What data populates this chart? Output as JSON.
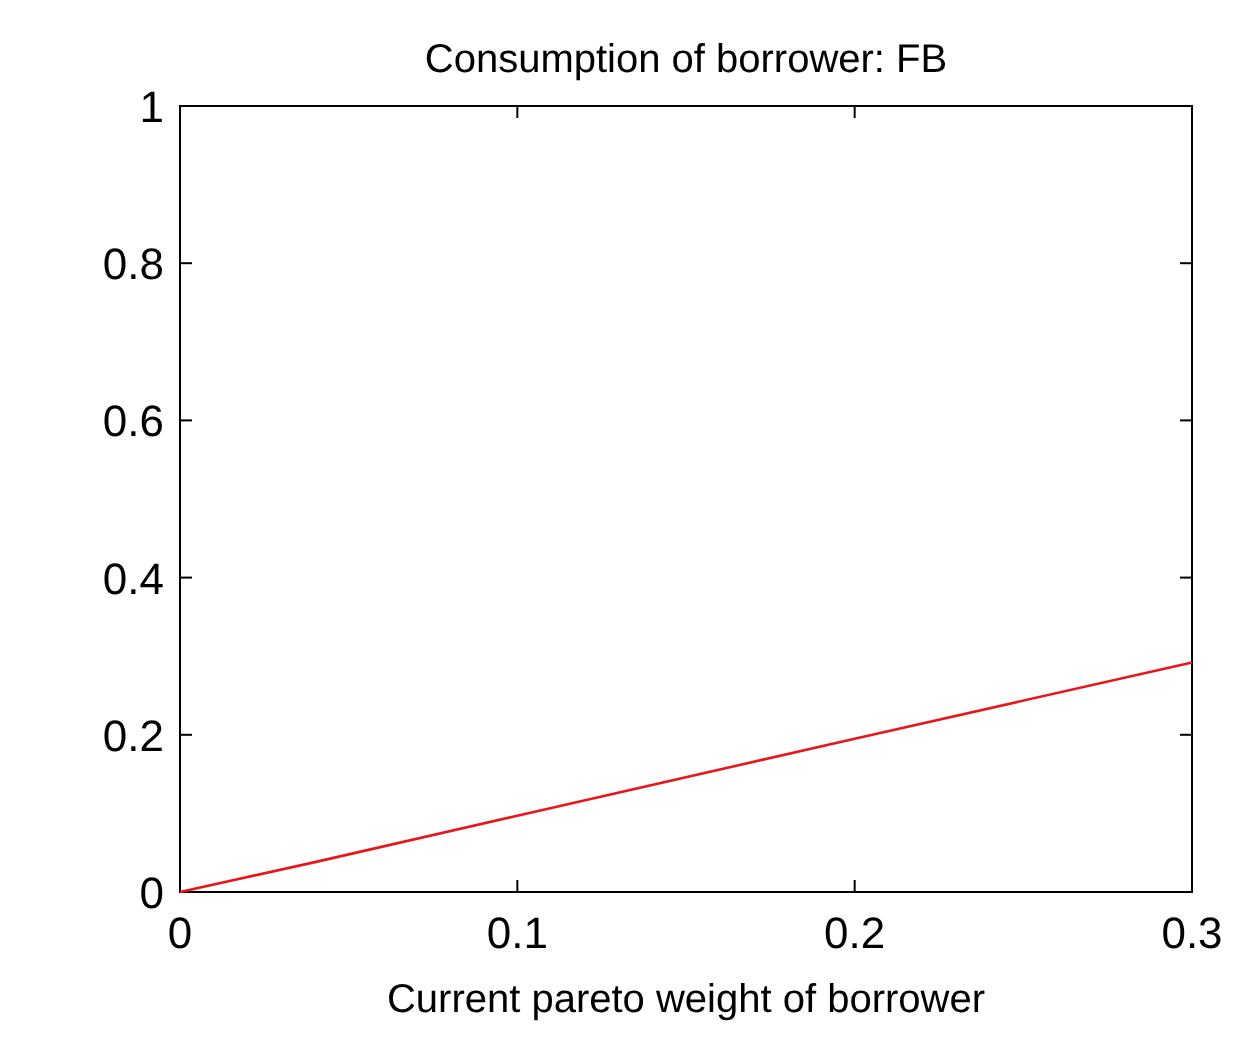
{
  "chart_data": {
    "type": "line",
    "title": "Consumption of borrower: FB",
    "xlabel": "Current pareto weight of borrower",
    "x": [
      0,
      0.04,
      0.1,
      0.2,
      0.3
    ],
    "series": [
      {
        "color": "#e8161b",
        "values": [
          0,
          0.038,
          0.097,
          0.195,
          0.292
        ]
      }
    ],
    "xlim": [
      0,
      0.3
    ],
    "xticks": [
      0,
      0.1,
      0.2,
      0.3
    ],
    "ylim": [
      0,
      1
    ],
    "yticks": [
      0,
      0.2,
      0.4,
      0.6,
      0.8,
      1
    ],
    "grid": false
  }
}
